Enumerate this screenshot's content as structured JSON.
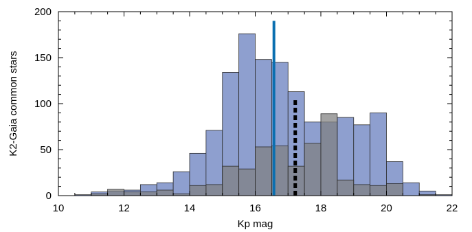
{
  "chart_data": {
    "type": "bar",
    "xlabel": "Kp mag",
    "ylabel": "K2-Gaia common stars",
    "xlim": [
      10,
      22
    ],
    "ylim": [
      0,
      200
    ],
    "xticks": [
      "10",
      "12",
      "14",
      "16",
      "18",
      "20",
      "22"
    ],
    "yticks": [
      "0",
      "50",
      "100",
      "150",
      "200"
    ],
    "grid": false,
    "bin_edges": [
      10.0,
      10.5,
      11.0,
      11.5,
      12.0,
      12.5,
      13.0,
      13.5,
      14.0,
      14.5,
      15.0,
      15.5,
      16.0,
      16.5,
      17.0,
      17.5,
      18.0,
      18.5,
      19.0,
      19.5,
      20.0,
      20.5,
      21.0,
      21.5,
      22.0
    ],
    "series": [
      {
        "values": [
          0,
          1,
          4,
          5,
          6,
          12,
          14,
          26,
          46,
          71,
          134,
          176,
          148,
          145,
          113,
          80,
          80,
          85,
          77,
          90,
          37,
          14,
          5,
          1
        ],
        "color": "#8e9fcf"
      },
      {
        "values": [
          0,
          0,
          2,
          7,
          4,
          4,
          6,
          2,
          11,
          12,
          32,
          29,
          53,
          54,
          32,
          57,
          89,
          17,
          12,
          11,
          13,
          0,
          1,
          0
        ],
        "color": "#808080"
      }
    ],
    "markers": [
      {
        "x": 16.57,
        "y": 190,
        "style": "solid",
        "color": "#0a6fb0"
      },
      {
        "x": 17.22,
        "y": 106,
        "style": "dashed",
        "color": "#000000"
      }
    ]
  }
}
